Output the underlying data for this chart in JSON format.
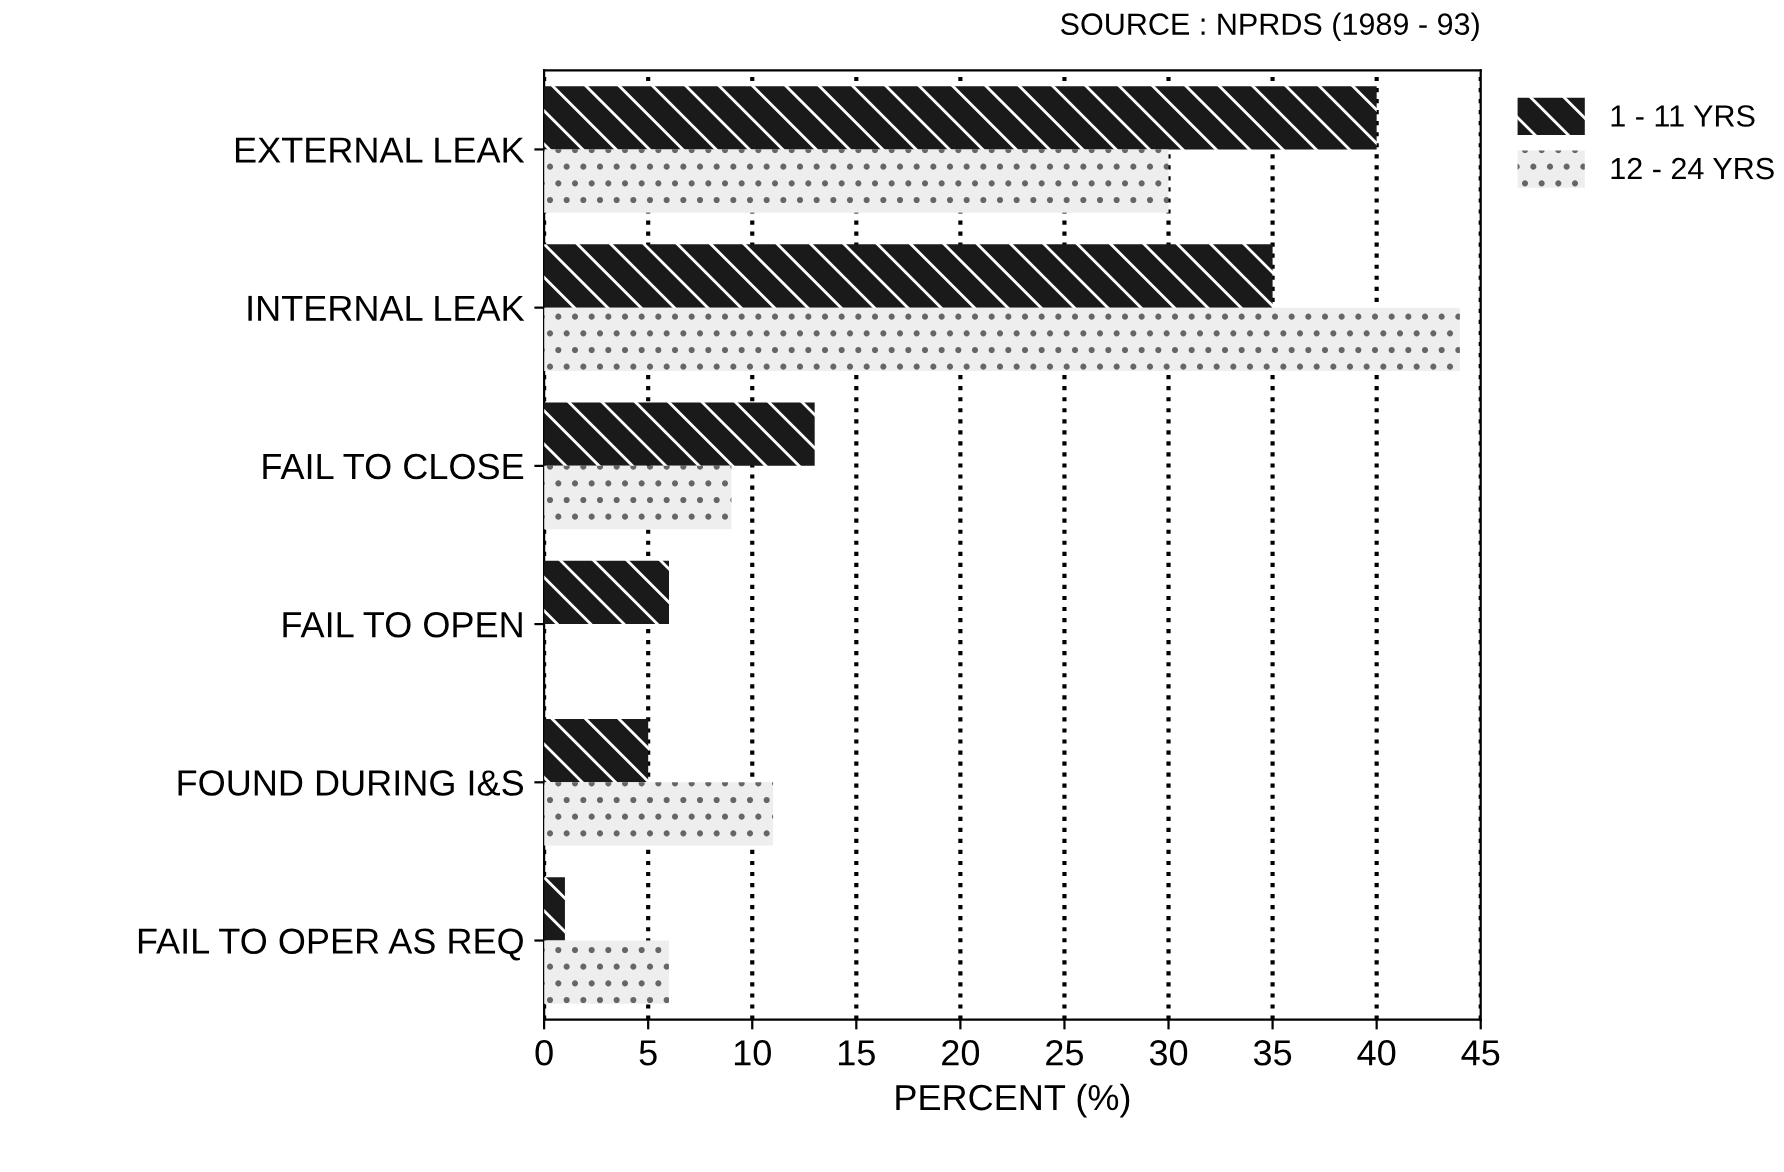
{
  "chart_data": {
    "type": "bar",
    "orientation": "horizontal",
    "categories": [
      "EXTERNAL LEAK",
      "INTERNAL LEAK",
      "FAIL TO CLOSE",
      "FAIL TO OPEN",
      "FOUND DURING I&S",
      "FAIL TO OPER AS REQ"
    ],
    "series": [
      {
        "name": "1 - 11 YRS",
        "color": "#1a1a1a",
        "values": [
          40,
          35,
          13,
          6,
          5,
          1
        ]
      },
      {
        "name": "12 - 24 YRS",
        "color": "#eeeeee",
        "values": [
          30,
          44,
          9,
          0,
          11,
          6
        ]
      }
    ],
    "xlabel": "PERCENT (%)",
    "xlim": [
      0,
      45
    ],
    "xticks": [
      0,
      5,
      10,
      15,
      20,
      25,
      30,
      35,
      40,
      45
    ],
    "grid": "x",
    "legend": "top right",
    "annotations": [
      "SOURCE : NPRDS (1989 - 93)"
    ]
  }
}
